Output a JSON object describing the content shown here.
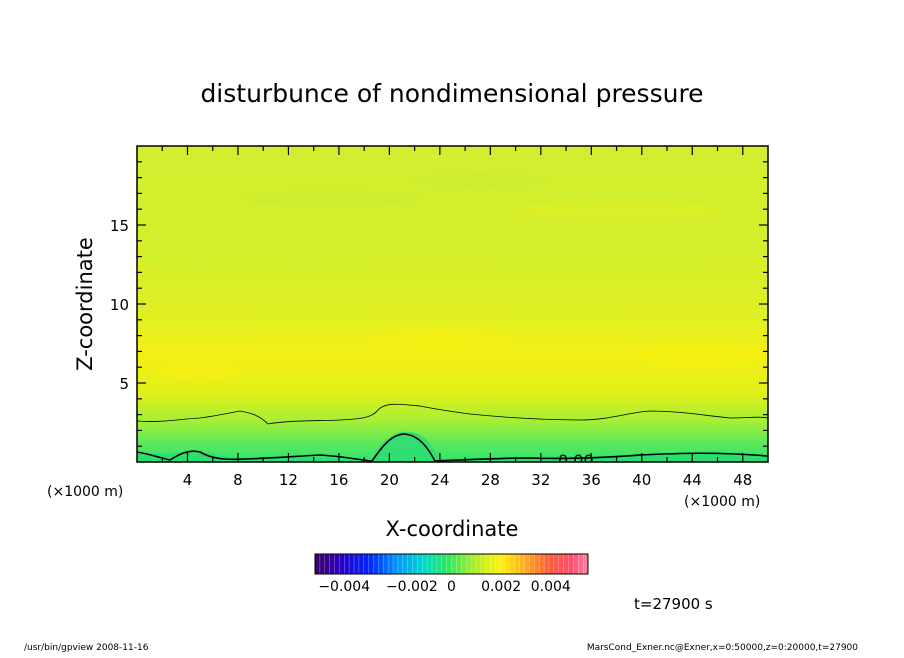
{
  "chart_data": {
    "type": "heatmap",
    "title": "disturbunce of nondimensional pressure",
    "xlabel": "X-coordinate",
    "ylabel": "Z-coordinate",
    "x_unit": "(×1000 m)",
    "x_unit_right": "(×1000 m)",
    "xlim": [
      0,
      50
    ],
    "ylim": [
      0,
      20
    ],
    "x_ticks": [
      4,
      8,
      12,
      16,
      20,
      24,
      28,
      32,
      36,
      40,
      44,
      48
    ],
    "x_tick_labels": [
      "4",
      "8",
      "12",
      "16",
      "20",
      "24",
      "28",
      "32",
      "36",
      "40",
      "44",
      "48"
    ],
    "y_ticks": [
      5,
      10,
      15
    ],
    "y_tick_labels": [
      "5",
      "10",
      "15"
    ],
    "grid": false,
    "contour_label": "0.00",
    "colorbar": {
      "range": [
        -0.0055,
        0.0055
      ],
      "tick_labels": [
        "−0.004",
        "−0.002",
        "0",
        "0.002",
        "0.004"
      ],
      "tick_values": [
        -0.004,
        -0.002,
        0,
        0.002,
        0.004
      ]
    },
    "field_summary": "near-zero positive disturbance (~0.0005-0.001) aloft; small negative values near surface z<3 km with a local minimum near x=21 km"
  },
  "time_label": "t=27900 s",
  "footer": {
    "left": "/usr/bin/gpview   2008-11-16",
    "right": "MarsCond_Exner.nc@Exner,x=0:50000,z=0:20000,t=27900"
  },
  "colors": {
    "frame": "#000000",
    "field_aloft": "#d4ee2a",
    "field_yellow": "#f4ef1a",
    "field_low": "#9cee3a",
    "field_surface": "#3ee26a"
  }
}
